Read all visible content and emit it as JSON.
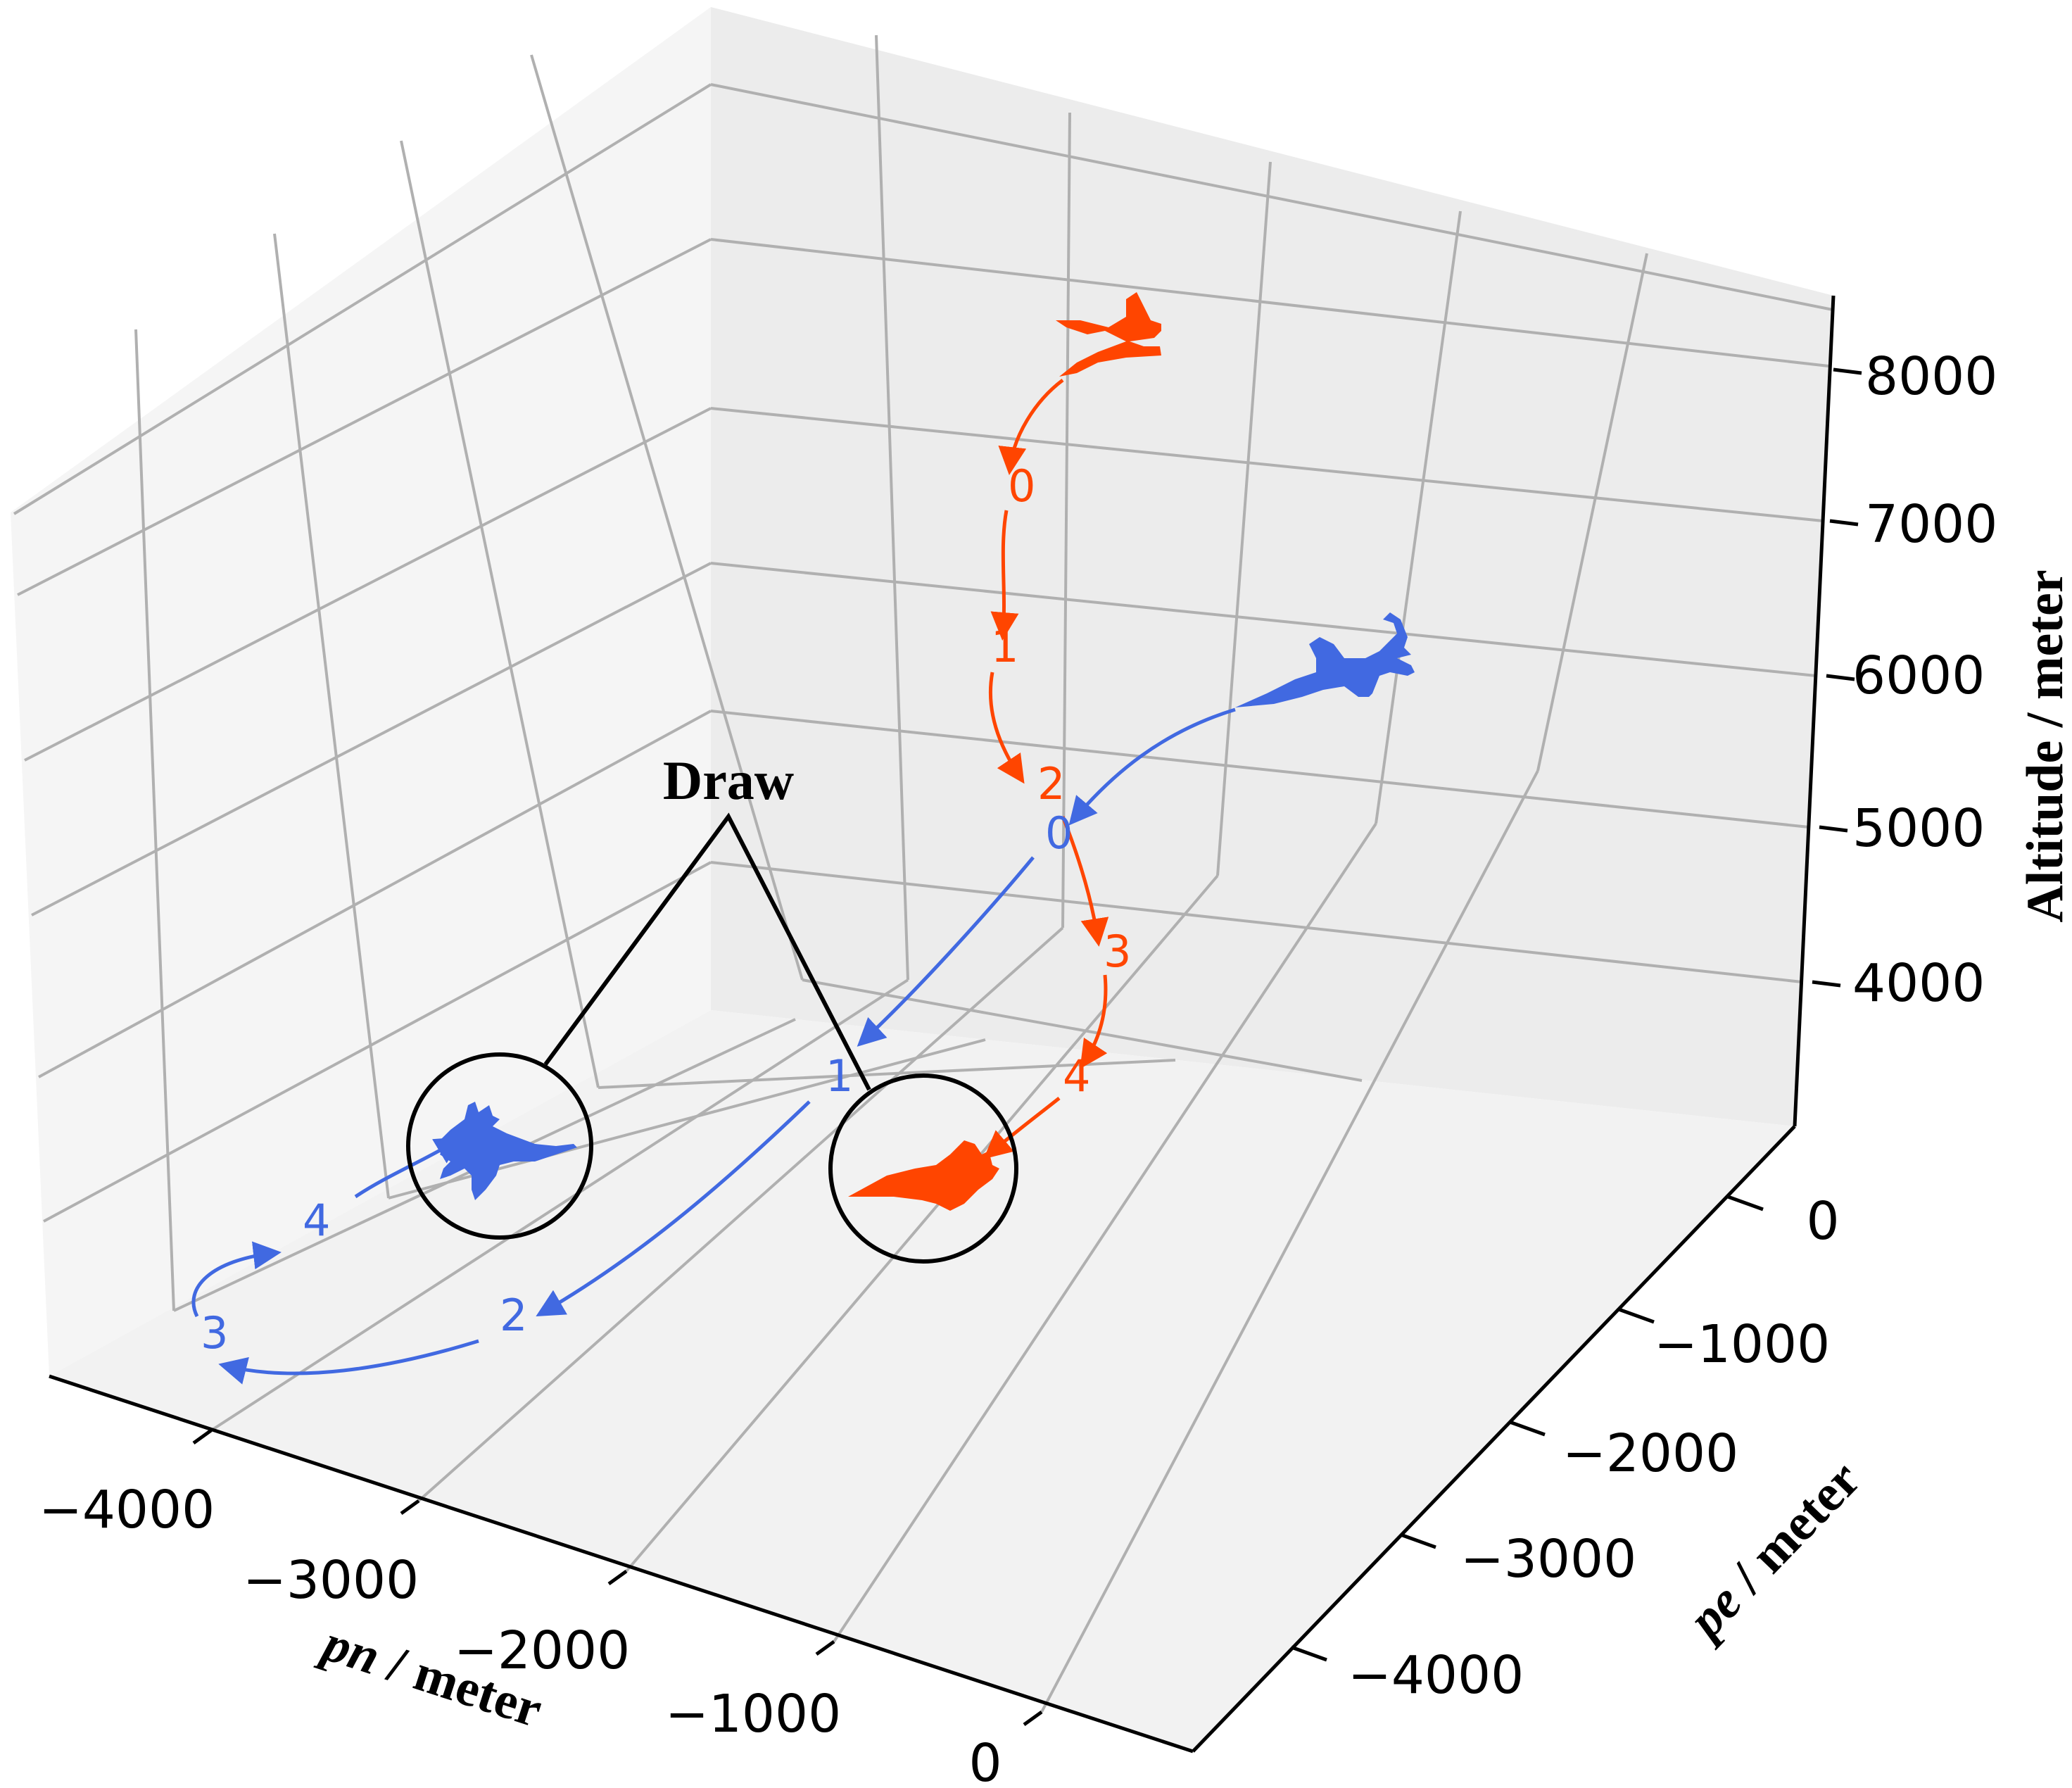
{
  "chart_data": {
    "type": "line",
    "projection": "3d",
    "grid": true,
    "axes": {
      "x": {
        "label_italic": "pn",
        "label_rest": " / meter",
        "ticks": [
          -4000,
          -3000,
          -2000,
          -1000,
          0
        ],
        "tick_labels": [
          "−4000",
          "−3000",
          "−2000",
          "−1000",
          "0"
        ],
        "range": [
          -4500,
          500
        ]
      },
      "y": {
        "label_italic": "pe",
        "label_rest": " / meter",
        "ticks": [
          0,
          -1000,
          -2000,
          -3000,
          -4000
        ],
        "tick_labels": [
          "0",
          "−1000",
          "−2000",
          "−3000",
          "−4000"
        ],
        "range": [
          500,
          -4500
        ]
      },
      "z": {
        "label": "Altitude / meter",
        "ticks": [
          4000,
          5000,
          6000,
          7000,
          8000
        ],
        "tick_labels": [
          "4000",
          "5000",
          "6000",
          "7000",
          "8000"
        ],
        "range": [
          3000,
          8500
        ]
      }
    },
    "series": [
      {
        "color": "#ff4500",
        "aircraft": "red-aircraft",
        "waypoints": [
          {
            "label": "0",
            "pn": -1800,
            "pe": 2500,
            "alt": 7600
          },
          {
            "label": "1",
            "pn": -1850,
            "pe": 2350,
            "alt": 6500
          },
          {
            "label": "2",
            "pn": -1650,
            "pe": 2100,
            "alt": 5100
          },
          {
            "label": "3",
            "pn": -1250,
            "pe": 1800,
            "alt": 4250
          },
          {
            "label": "4",
            "pn": -1000,
            "pe": 1450,
            "alt": 3300
          }
        ]
      },
      {
        "color": "#4169e1",
        "aircraft": "blue-aircraft",
        "waypoints": [
          {
            "label": "0",
            "pn": -1550,
            "pe": 1700,
            "alt": 5000
          },
          {
            "label": "1",
            "pn": -2050,
            "pe": 600,
            "alt": 3300
          },
          {
            "label": "2",
            "pn": -3100,
            "pe": -500,
            "alt": 1800
          },
          {
            "label": "3",
            "pn": -4000,
            "pe": -600,
            "alt": 2400
          },
          {
            "label": "4",
            "pn": -3800,
            "pe": -100,
            "alt": 3100
          }
        ]
      }
    ],
    "annotation": {
      "text": "Draw"
    }
  }
}
